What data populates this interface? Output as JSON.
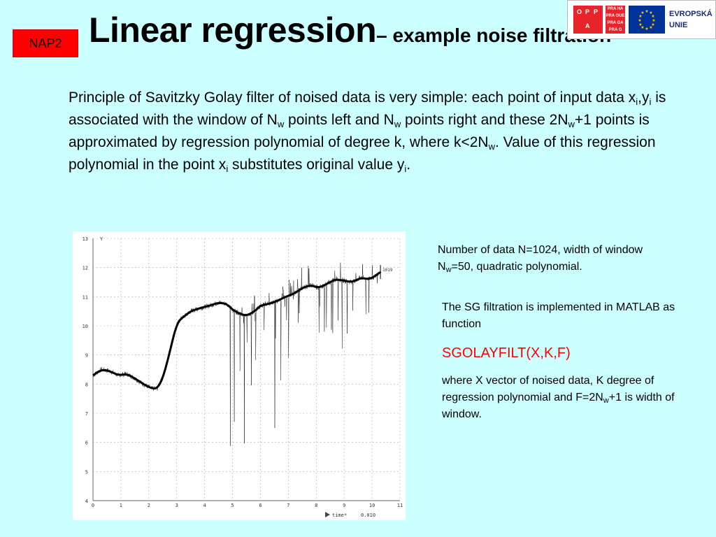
{
  "badge": "NAP2",
  "title": {
    "main": "Linear regression",
    "sub": "– example noise filtration"
  },
  "logos": {
    "oppa": [
      "O",
      "P",
      "P",
      "A"
    ],
    "praha": [
      "PRA HA",
      "PRA GUE",
      "PRA GA",
      "PRA G"
    ],
    "eu_line1": "EVROPSKÁ",
    "eu_line2": "UNIE"
  },
  "paragraph": {
    "t1": "Principle of Savitzky Golay filter of noised data is very simple: each point of input data x",
    "s1": "i",
    "t2": ",y",
    "s2": "i",
    "t3": " is associated with the window of  N",
    "s3": "w",
    "t4": " points left and N",
    "s4": "w",
    "t5": " points right and these 2N",
    "s5": "w",
    "t6": "+1 points is approximated by regression polynomial of degree k, where k<2N",
    "s6": "w",
    "t7": ". Value of this regression polynomial in the point x",
    "s7": "i",
    "t8": " substitutes original value y",
    "s8": "i",
    "t9": "."
  },
  "note1": {
    "a": "Number of data N=1024, width of window N",
    "sub": "w",
    "b": "=50, quadratic polynomial."
  },
  "note2": "The SG filtration is implemented in MATLAB as function",
  "function_name": "SGOLAYFILT(X,K,F)",
  "note3": {
    "a": "where X vector of noised data, K degree of regression polynomial and F=2N",
    "sub": "w",
    "b": "+1 is width of window."
  },
  "chart_data": {
    "type": "line",
    "title": "",
    "xlabel": "time*",
    "x_scale_label": "0.010",
    "ylabel": "Y",
    "xlim": [
      0,
      11
    ],
    "ylim": [
      4,
      13
    ],
    "x_ticks": [
      "0",
      "1",
      "2",
      "3",
      "4",
      "5",
      "6",
      "7",
      "8",
      "9",
      "10",
      "11"
    ],
    "y_ticks": [
      "4",
      "5",
      "6",
      "7",
      "8",
      "9",
      "10",
      "11",
      "12",
      "13"
    ],
    "grid": true,
    "end_marker_label": "1019",
    "series": [
      {
        "role": "filtered",
        "x": [
          0,
          0.3,
          0.6,
          0.9,
          1.2,
          1.5,
          1.8,
          2.1,
          2.3,
          2.5,
          2.7,
          2.9,
          3.0,
          3.1,
          3.3,
          3.5,
          3.8,
          4.0,
          4.2,
          4.5,
          4.8,
          5.0,
          5.3,
          5.5,
          5.8,
          6.0,
          6.3,
          6.6,
          6.9,
          7.2,
          7.5,
          7.8,
          8.1,
          8.4,
          8.7,
          9.0,
          9.3,
          9.6,
          9.9,
          10.1,
          10.3
        ],
        "y": [
          8.3,
          8.5,
          8.45,
          8.3,
          8.35,
          8.2,
          8.0,
          7.85,
          7.85,
          8.2,
          8.9,
          9.7,
          10.0,
          10.2,
          10.35,
          10.5,
          10.6,
          10.65,
          10.7,
          10.8,
          10.75,
          10.55,
          10.4,
          10.35,
          10.5,
          10.7,
          10.75,
          10.85,
          11.0,
          11.1,
          11.3,
          11.4,
          11.3,
          11.45,
          11.6,
          11.55,
          11.5,
          11.65,
          11.6,
          11.7,
          11.85
        ]
      }
    ]
  }
}
